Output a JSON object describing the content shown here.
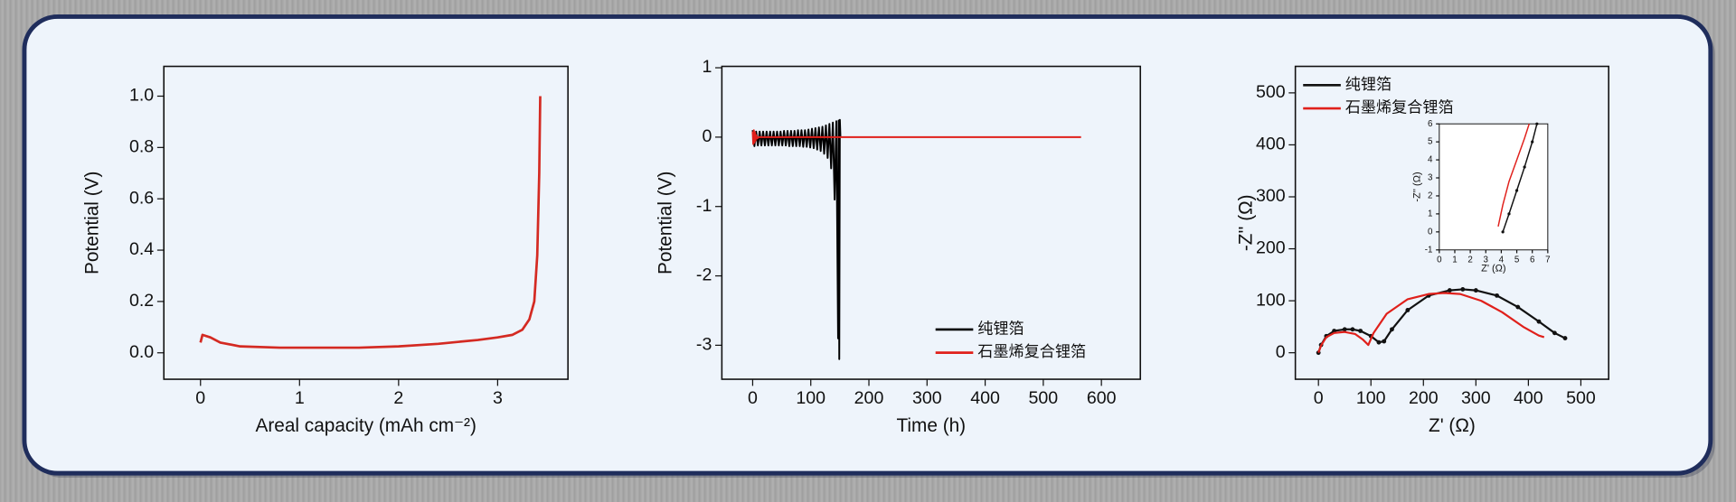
{
  "chart_data": [
    {
      "type": "line",
      "xlabel": "Areal capacity (mAh cm⁻²)",
      "ylabel": "Potential (V)",
      "color": "#d42a22",
      "x": [
        0,
        0.02,
        0.1,
        0.2,
        0.4,
        0.8,
        1.2,
        1.6,
        2.0,
        2.4,
        2.8,
        3.0,
        3.15,
        3.25,
        3.32,
        3.37,
        3.4,
        3.42,
        3.43
      ],
      "values": [
        0.04,
        0.07,
        0.06,
        0.04,
        0.025,
        0.02,
        0.02,
        0.02,
        0.025,
        0.035,
        0.05,
        0.06,
        0.07,
        0.09,
        0.13,
        0.2,
        0.38,
        0.7,
        1.0
      ],
      "xlim": [
        -0.37,
        3.71
      ],
      "ylim": [
        -0.103,
        1.116
      ],
      "xticks": [
        0,
        1,
        2,
        3
      ],
      "yticks": [
        {
          "value": 0,
          "label": "0.0"
        },
        {
          "value": 0.2,
          "label": "0.2"
        },
        {
          "value": 0.4,
          "label": "0.4"
        },
        {
          "value": 0.6,
          "label": "0.6"
        },
        {
          "value": 0.8,
          "label": "0.8"
        },
        {
          "value": 1.0,
          "label": "1.0"
        }
      ]
    },
    {
      "type": "line",
      "xlabel": "Time (h)",
      "ylabel": "Potential (V)",
      "legend": "lower right",
      "xlim": [
        -53,
        667
      ],
      "ylim": [
        -3.49,
        1.02
      ],
      "xticks": [
        0,
        100,
        200,
        300,
        400,
        500,
        600
      ],
      "yticks": [
        1,
        0,
        -1,
        -2,
        -3
      ],
      "series": [
        {
          "name": "纯锂箔",
          "color": "#000000",
          "x": [
            0,
            3,
            6,
            9,
            12,
            15,
            18,
            21,
            24,
            27,
            30,
            33,
            36,
            39,
            42,
            45,
            48,
            51,
            54,
            57,
            60,
            63,
            66,
            69,
            72,
            75,
            78,
            81,
            84,
            87,
            90,
            93,
            96,
            99,
            102,
            105,
            108,
            111,
            114,
            117,
            120,
            123,
            126,
            129,
            132,
            135,
            138,
            141,
            144,
            147,
            148,
            149,
            150,
            151
          ],
          "values": [
            0.1,
            -0.13,
            0.08,
            -0.12,
            0.08,
            -0.12,
            0.08,
            -0.12,
            0.08,
            -0.12,
            0.08,
            -0.12,
            0.08,
            -0.12,
            0.08,
            -0.12,
            0.08,
            -0.12,
            0.09,
            -0.12,
            0.09,
            -0.13,
            0.09,
            -0.13,
            0.09,
            -0.13,
            0.1,
            -0.13,
            0.1,
            -0.14,
            0.1,
            -0.14,
            0.11,
            -0.15,
            0.12,
            -0.16,
            0.13,
            -0.18,
            0.14,
            -0.2,
            0.15,
            -0.24,
            0.17,
            -0.3,
            0.19,
            -0.45,
            0.21,
            -0.9,
            0.23,
            -2.9,
            0.24,
            -3.2,
            0.25,
            0.0
          ]
        },
        {
          "name": "石墨烯复合锂箔",
          "color": "#e0201b",
          "x": [
            0,
            1,
            2,
            3,
            4,
            5,
            6,
            8,
            10,
            565
          ],
          "values": [
            0.08,
            -0.1,
            0.1,
            -0.08,
            0.07,
            -0.05,
            0.03,
            -0.02,
            0,
            0
          ]
        }
      ]
    },
    {
      "type": "line",
      "xlabel": "Z' (Ω)",
      "ylabel": "-Z'' (Ω)",
      "legend": "upper left",
      "xlim": [
        -44,
        553
      ],
      "ylim": [
        -51,
        551
      ],
      "xticks": [
        0,
        100,
        200,
        300,
        400,
        500
      ],
      "yticks": [
        0,
        100,
        200,
        300,
        400,
        500
      ],
      "series": [
        {
          "name": "纯锂箔",
          "color": "#111111",
          "markers": true,
          "x": [
            0,
            5,
            15,
            30,
            50,
            65,
            80,
            100,
            115,
            125,
            140,
            170,
            210,
            250,
            275,
            300,
            340,
            380,
            420,
            450,
            470
          ],
          "values": [
            0,
            15,
            32,
            42,
            45,
            45,
            42,
            32,
            20,
            22,
            45,
            82,
            110,
            120,
            122,
            120,
            110,
            88,
            60,
            38,
            28
          ]
        },
        {
          "name": "石墨烯复合锂箔",
          "color": "#e0201b",
          "x": [
            0,
            5,
            15,
            30,
            50,
            70,
            85,
            95,
            105,
            130,
            170,
            210,
            240,
            270,
            310,
            350,
            390,
            420,
            430
          ],
          "values": [
            0,
            14,
            30,
            38,
            40,
            36,
            25,
            15,
            38,
            75,
            103,
            113,
            115,
            113,
            100,
            78,
            50,
            33,
            30
          ]
        }
      ]
    },
    {
      "type": "line",
      "xlabel": "Z' (Ω)",
      "ylabel": "-Z'' (Ω)",
      "xlim": [
        0,
        7
      ],
      "ylim": [
        -1,
        6
      ],
      "xticks": [
        0,
        1,
        2,
        3,
        4,
        5,
        6,
        7
      ],
      "yticks": [
        -1,
        0,
        1,
        2,
        3,
        4,
        5,
        6
      ],
      "series": [
        {
          "color": "#111111",
          "markers": true,
          "x": [
            4.1,
            4.5,
            5,
            5.5,
            6,
            6.3
          ],
          "values": [
            0,
            1,
            2.3,
            3.6,
            5,
            6
          ]
        },
        {
          "color": "#e0201b",
          "x": [
            3.8,
            4.1,
            4.5,
            5,
            5.5,
            5.8
          ],
          "values": [
            0.3,
            1.5,
            2.8,
            4,
            5.2,
            6
          ]
        }
      ]
    }
  ]
}
